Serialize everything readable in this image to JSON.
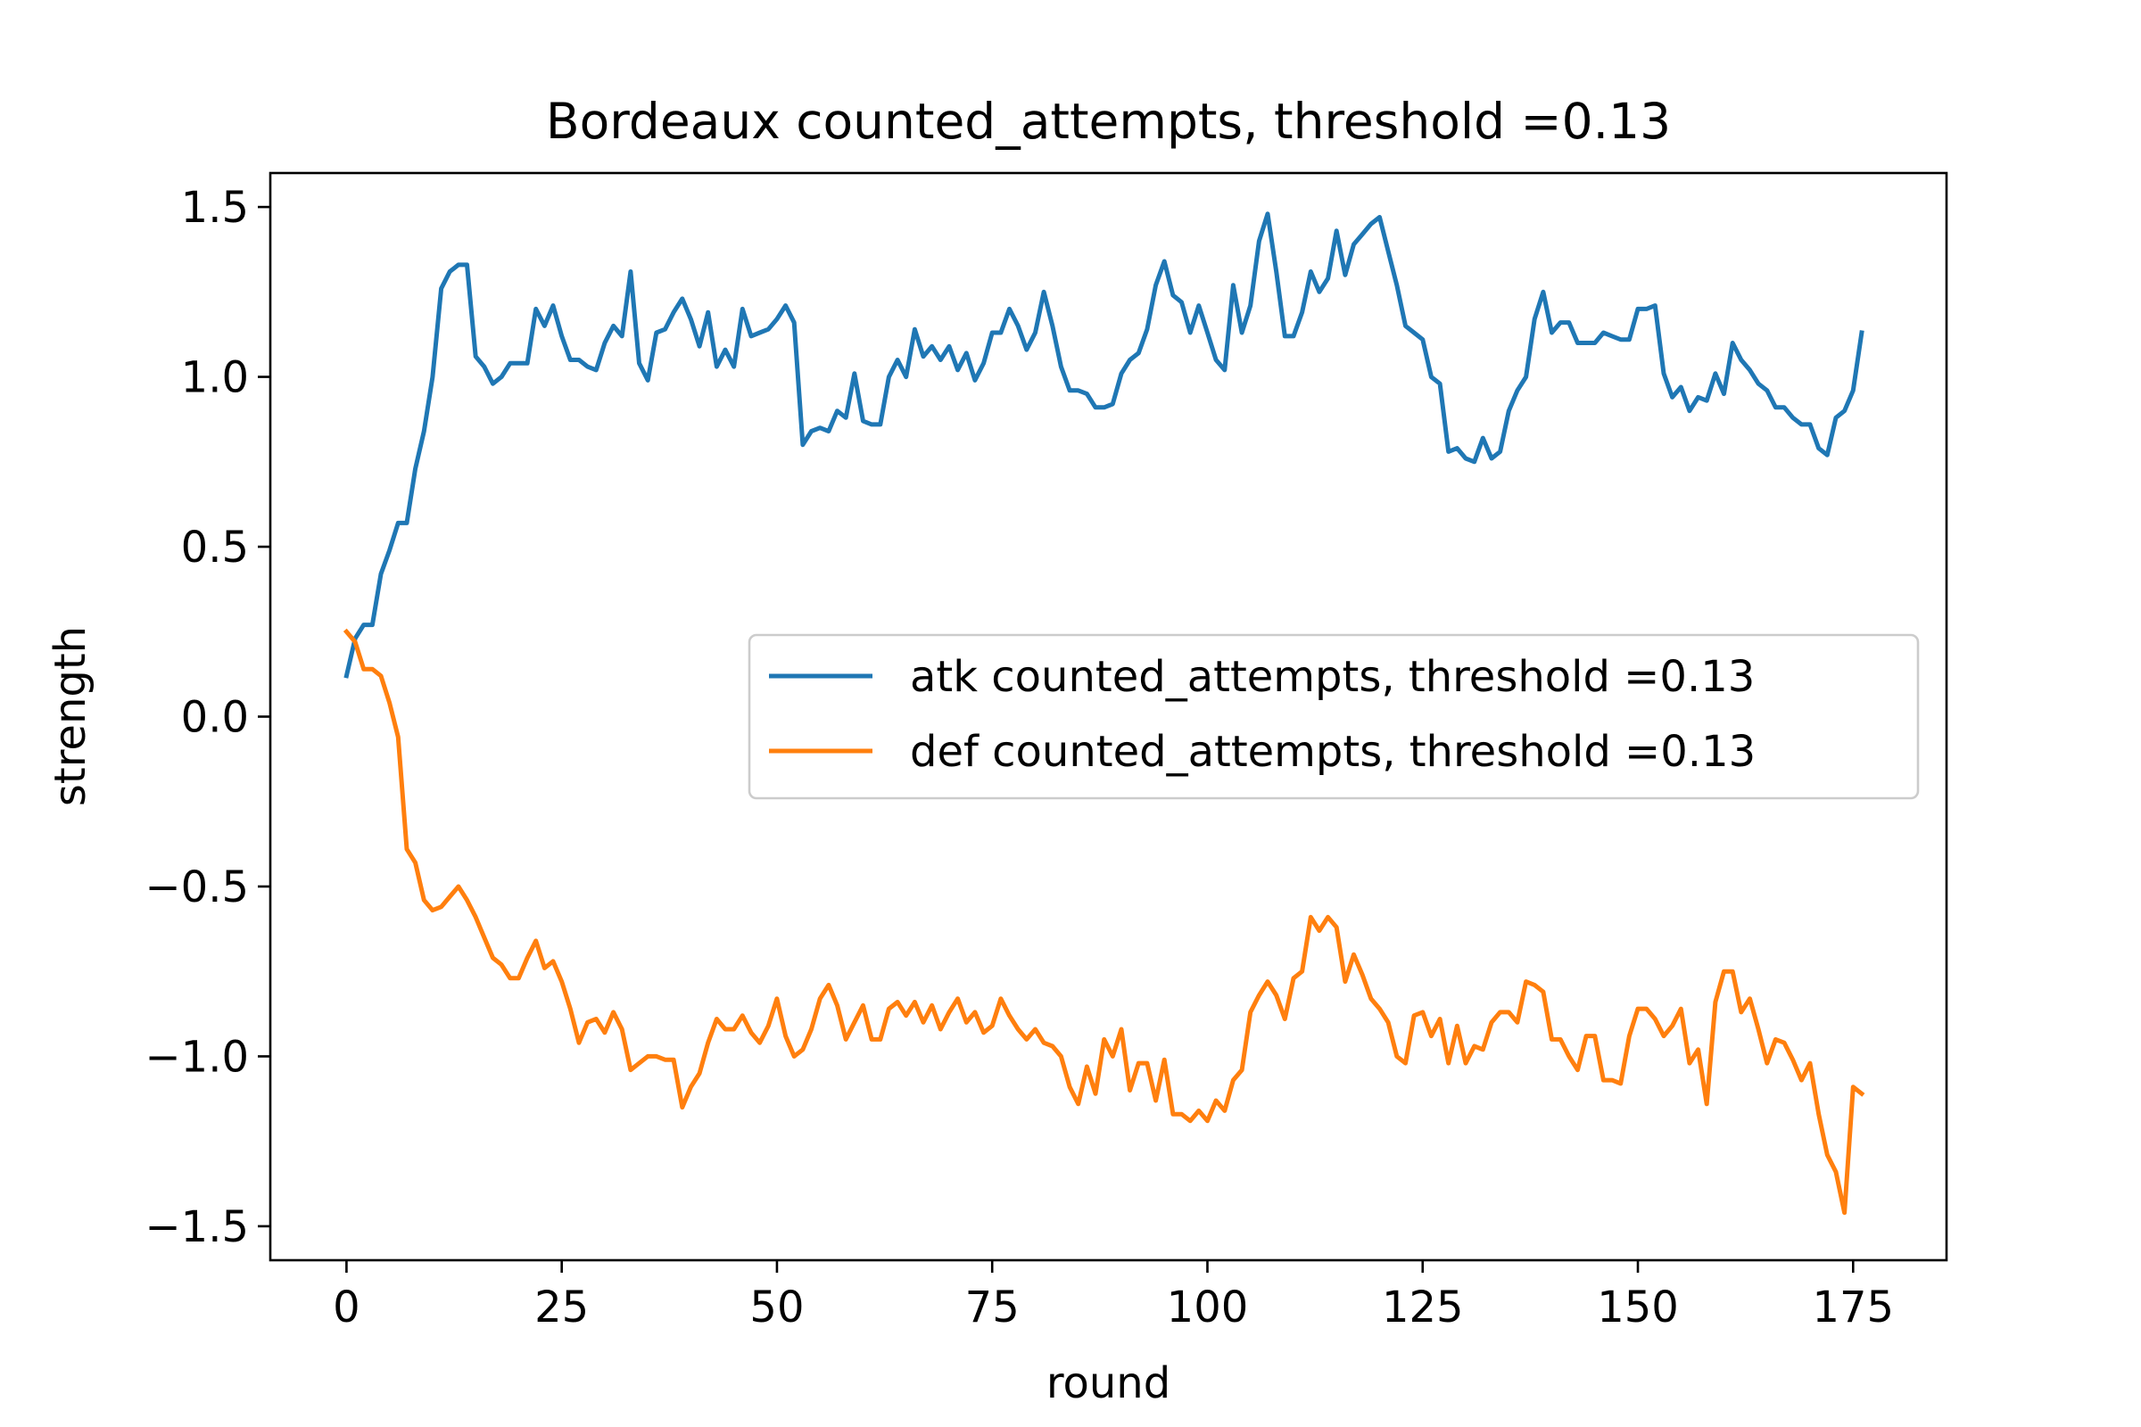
{
  "colors": {
    "atk": "#1f77b4",
    "def": "#ff7f0e",
    "axes": "#000000",
    "legend_border": "#cccccc"
  },
  "chart_data": {
    "type": "line",
    "title": "Bordeaux counted_attempts, threshold =0.13",
    "xlabel": "round",
    "ylabel": "strength",
    "xlim": [
      -8.85,
      185.85
    ],
    "ylim": [
      -1.6,
      1.6
    ],
    "grid": false,
    "legend_position": "center-right",
    "x_ticks": [
      0,
      25,
      50,
      75,
      100,
      125,
      150,
      175
    ],
    "x_tick_labels": [
      "0",
      "25",
      "50",
      "75",
      "100",
      "125",
      "150",
      "175"
    ],
    "y_ticks": [
      1.5,
      1.0,
      0.5,
      0.0,
      -0.5,
      -1.0,
      -1.5
    ],
    "y_tick_labels": [
      "1.5",
      "1.0",
      "0.5",
      "0.0",
      "−0.5",
      "−1.0",
      "−1.5"
    ],
    "x_start": 0,
    "series": [
      {
        "name": "atk counted_attempts, threshold =0.13",
        "values": [
          0.12,
          0.23,
          0.27,
          0.27,
          0.42,
          0.49,
          0.57,
          0.57,
          0.73,
          0.84,
          1.0,
          1.26,
          1.31,
          1.33,
          1.33,
          1.06,
          1.03,
          0.98,
          1.0,
          1.04,
          1.04,
          1.04,
          1.2,
          1.15,
          1.21,
          1.12,
          1.05,
          1.05,
          1.03,
          1.02,
          1.1,
          1.15,
          1.12,
          1.31,
          1.04,
          0.99,
          1.13,
          1.14,
          1.19,
          1.23,
          1.17,
          1.09,
          1.19,
          1.03,
          1.08,
          1.03,
          1.2,
          1.12,
          1.13,
          1.14,
          1.17,
          1.21,
          1.16,
          0.8,
          0.84,
          0.85,
          0.84,
          0.9,
          0.88,
          1.01,
          0.87,
          0.86,
          0.86,
          1.0,
          1.05,
          1.0,
          1.14,
          1.06,
          1.09,
          1.05,
          1.09,
          1.02,
          1.07,
          0.99,
          1.04,
          1.13,
          1.13,
          1.2,
          1.15,
          1.08,
          1.13,
          1.25,
          1.15,
          1.03,
          0.96,
          0.96,
          0.95,
          0.91,
          0.91,
          0.92,
          1.01,
          1.05,
          1.07,
          1.14,
          1.27,
          1.34,
          1.24,
          1.22,
          1.13,
          1.21,
          1.13,
          1.05,
          1.02,
          1.27,
          1.13,
          1.21,
          1.4,
          1.48,
          1.31,
          1.12,
          1.12,
          1.19,
          1.31,
          1.25,
          1.29,
          1.43,
          1.3,
          1.39,
          1.42,
          1.45,
          1.47,
          1.37,
          1.27,
          1.15,
          1.13,
          1.11,
          1.0,
          0.98,
          0.78,
          0.79,
          0.76,
          0.75,
          0.82,
          0.76,
          0.78,
          0.9,
          0.96,
          1.0,
          1.17,
          1.25,
          1.13,
          1.16,
          1.16,
          1.1,
          1.1,
          1.1,
          1.13,
          1.12,
          1.11,
          1.11,
          1.2,
          1.2,
          1.21,
          1.01,
          0.94,
          0.97,
          0.9,
          0.94,
          0.93,
          1.01,
          0.95,
          1.1,
          1.05,
          1.02,
          0.98,
          0.96,
          0.91,
          0.91,
          0.88,
          0.86,
          0.86,
          0.79,
          0.77,
          0.88,
          0.9,
          0.96,
          1.13
        ]
      },
      {
        "name": "def counted_attempts, threshold =0.13",
        "values": [
          0.25,
          0.22,
          0.14,
          0.14,
          0.12,
          0.04,
          -0.06,
          -0.39,
          -0.43,
          -0.54,
          -0.57,
          -0.56,
          -0.53,
          -0.5,
          -0.54,
          -0.59,
          -0.65,
          -0.71,
          -0.73,
          -0.77,
          -0.77,
          -0.71,
          -0.66,
          -0.74,
          -0.72,
          -0.78,
          -0.86,
          -0.96,
          -0.9,
          -0.89,
          -0.93,
          -0.87,
          -0.92,
          -1.04,
          -1.02,
          -1.0,
          -1.0,
          -1.01,
          -1.01,
          -1.15,
          -1.09,
          -1.05,
          -0.96,
          -0.89,
          -0.92,
          -0.92,
          -0.88,
          -0.93,
          -0.96,
          -0.91,
          -0.83,
          -0.94,
          -1.0,
          -0.98,
          -0.92,
          -0.83,
          -0.79,
          -0.85,
          -0.95,
          -0.9,
          -0.85,
          -0.95,
          -0.95,
          -0.86,
          -0.84,
          -0.88,
          -0.84,
          -0.9,
          -0.85,
          -0.92,
          -0.87,
          -0.83,
          -0.9,
          -0.87,
          -0.93,
          -0.91,
          -0.83,
          -0.88,
          -0.92,
          -0.95,
          -0.92,
          -0.96,
          -0.97,
          -1.0,
          -1.09,
          -1.14,
          -1.03,
          -1.11,
          -0.95,
          -1.0,
          -0.92,
          -1.1,
          -1.02,
          -1.02,
          -1.13,
          -1.01,
          -1.17,
          -1.17,
          -1.19,
          -1.16,
          -1.19,
          -1.13,
          -1.16,
          -1.07,
          -1.04,
          -0.87,
          -0.82,
          -0.78,
          -0.82,
          -0.89,
          -0.77,
          -0.75,
          -0.59,
          -0.63,
          -0.59,
          -0.62,
          -0.78,
          -0.7,
          -0.76,
          -0.83,
          -0.86,
          -0.9,
          -1.0,
          -1.02,
          -0.88,
          -0.87,
          -0.94,
          -0.89,
          -1.02,
          -0.91,
          -1.02,
          -0.97,
          -0.98,
          -0.9,
          -0.87,
          -0.87,
          -0.9,
          -0.78,
          -0.79,
          -0.81,
          -0.95,
          -0.95,
          -1.0,
          -1.04,
          -0.94,
          -0.94,
          -1.07,
          -1.07,
          -1.08,
          -0.94,
          -0.86,
          -0.86,
          -0.89,
          -0.94,
          -0.91,
          -0.86,
          -1.02,
          -0.98,
          -1.14,
          -0.84,
          -0.75,
          -0.75,
          -0.87,
          -0.83,
          -0.92,
          -1.02,
          -0.95,
          -0.96,
          -1.01,
          -1.07,
          -1.02,
          -1.17,
          -1.29,
          -1.34,
          -1.46,
          -1.09,
          -1.11
        ]
      }
    ]
  }
}
